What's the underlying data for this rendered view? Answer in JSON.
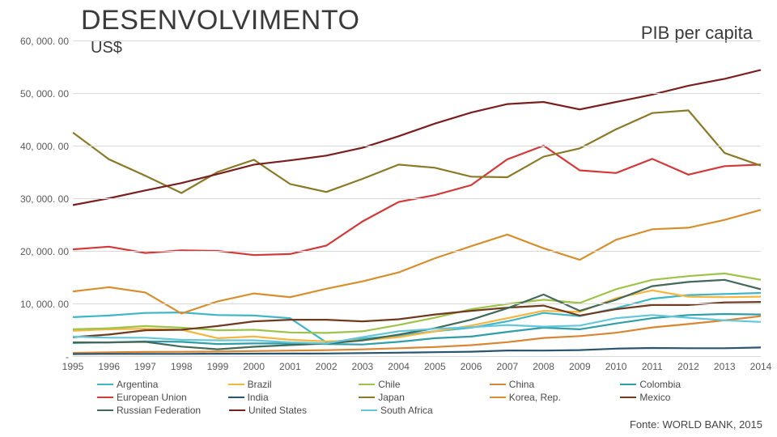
{
  "title": "DESENVOLVIMENTO",
  "subtitle": "PIB per capita",
  "y_unit": "US$",
  "source": "Fonte: WORLD BANK, 2015",
  "chart": {
    "type": "line",
    "background_color": "#ffffff",
    "grid_color": "#d9d9d9",
    "axis_label_color": "#5a5a5a",
    "axis_label_fontsize": 12,
    "ylim": [
      0,
      60000
    ],
    "ytick_step": 10000,
    "yticks": [
      {
        "value": 0,
        "label": "-"
      },
      {
        "value": 10000,
        "label": "10, 000. 00"
      },
      {
        "value": 20000,
        "label": "20, 000. 00"
      },
      {
        "value": 30000,
        "label": "30, 000. 00"
      },
      {
        "value": 40000,
        "label": "40, 000. 00"
      },
      {
        "value": 50000,
        "label": "50, 000. 00"
      },
      {
        "value": 60000,
        "label": "60, 000. 00"
      }
    ],
    "years": [
      1995,
      1996,
      1997,
      1998,
      1999,
      2000,
      2001,
      2002,
      2003,
      2004,
      2005,
      2006,
      2007,
      2008,
      2009,
      2010,
      2011,
      2012,
      2013,
      2014
    ],
    "series": [
      {
        "name": "Argentina",
        "color": "#3fb6c6",
        "values": [
          7400,
          7700,
          8200,
          8300,
          7800,
          7700,
          7200,
          2600,
          3300,
          3900,
          4700,
          5400,
          6600,
          8200,
          7600,
          9100,
          10900,
          11600,
          11800,
          12000
        ]
      },
      {
        "name": "Brazil",
        "color": "#f5b63f",
        "values": [
          4800,
          5100,
          5200,
          5000,
          3400,
          3700,
          3100,
          2800,
          3000,
          3600,
          4700,
          5800,
          7200,
          8600,
          8400,
          11000,
          12500,
          11300,
          11200,
          11300
        ]
      },
      {
        "name": "Chile",
        "color": "#9ec34a",
        "values": [
          5100,
          5300,
          5700,
          5400,
          4900,
          5000,
          4500,
          4400,
          4700,
          5900,
          7300,
          8900,
          9900,
          10700,
          10100,
          12700,
          14500,
          15200,
          15700,
          14500
        ]
      },
      {
        "name": "China",
        "color": "#d98634",
        "values": [
          600,
          700,
          780,
          820,
          860,
          950,
          1040,
          1130,
          1270,
          1490,
          1730,
          2070,
          2650,
          3440,
          3800,
          4430,
          5450,
          6090,
          6800,
          7590
        ]
      },
      {
        "name": "Colombia",
        "color": "#2f9ea8",
        "values": [
          2500,
          2600,
          2800,
          2700,
          2300,
          2400,
          2400,
          2300,
          2200,
          2700,
          3400,
          3700,
          4600,
          5400,
          5100,
          6200,
          7200,
          7800,
          8000,
          7900
        ]
      },
      {
        "name": "European Union",
        "color": "#d23a3a",
        "values": [
          20300,
          20800,
          19600,
          20100,
          20000,
          19200,
          19400,
          21000,
          25600,
          29300,
          30600,
          32500,
          37400,
          40000,
          35300,
          34800,
          37500,
          34500,
          36100,
          36400
        ]
      },
      {
        "name": "India",
        "color": "#2a556f",
        "values": [
          380,
          410,
          420,
          420,
          450,
          460,
          470,
          490,
          570,
          650,
          740,
          830,
          1060,
          1040,
          1140,
          1420,
          1540,
          1500,
          1500,
          1630
        ]
      },
      {
        "name": "Japan",
        "color": "#8a7a28",
        "values": [
          42500,
          37400,
          34300,
          31000,
          35000,
          37300,
          32700,
          31200,
          33700,
          36400,
          35800,
          34100,
          34000,
          37900,
          39500,
          43100,
          46200,
          46700,
          38600,
          36200
        ]
      },
      {
        "name": "Korea, Rep.",
        "color": "#d78f2e",
        "values": [
          12300,
          13100,
          12100,
          8100,
          10400,
          11900,
          11200,
          12800,
          14200,
          15900,
          18600,
          20900,
          23100,
          20500,
          18300,
          22100,
          24100,
          24400,
          25900,
          27800
        ]
      },
      {
        "name": "Mexico",
        "color": "#6f3a1e",
        "values": [
          3600,
          4100,
          4900,
          5000,
          5700,
          6600,
          6900,
          6900,
          6600,
          7000,
          7900,
          8600,
          9200,
          9600,
          7700,
          8900,
          9700,
          9700,
          10200,
          10300
        ]
      },
      {
        "name": "Russian Federation",
        "color": "#42695a",
        "values": [
          2600,
          2600,
          2700,
          1800,
          1300,
          1770,
          2100,
          2380,
          2980,
          4100,
          5300,
          6900,
          9100,
          11700,
          8600,
          10700,
          13300,
          14100,
          14500,
          12700
        ]
      },
      {
        "name": "United States",
        "color": "#7a1f1f",
        "values": [
          28700,
          30000,
          31500,
          32900,
          34600,
          36400,
          37200,
          38100,
          39600,
          41800,
          44200,
          46300,
          47900,
          48300,
          46900,
          48300,
          49700,
          51400,
          52700,
          54400
        ]
      },
      {
        "name": "South Africa",
        "color": "#63c6d9",
        "values": [
          3700,
          3500,
          3500,
          3100,
          3000,
          3000,
          2600,
          2400,
          3600,
          4700,
          5200,
          5500,
          5900,
          5600,
          5800,
          7200,
          7800,
          7300,
          6800,
          6500
        ]
      }
    ],
    "legend_layout": [
      [
        "Argentina",
        "Brazil",
        "Chile",
        "China",
        "Colombia"
      ],
      [
        "European Union",
        "India",
        "Japan",
        "Korea, Rep.",
        "Mexico"
      ],
      [
        "Russian Federation",
        "United States",
        "South Africa"
      ]
    ]
  }
}
